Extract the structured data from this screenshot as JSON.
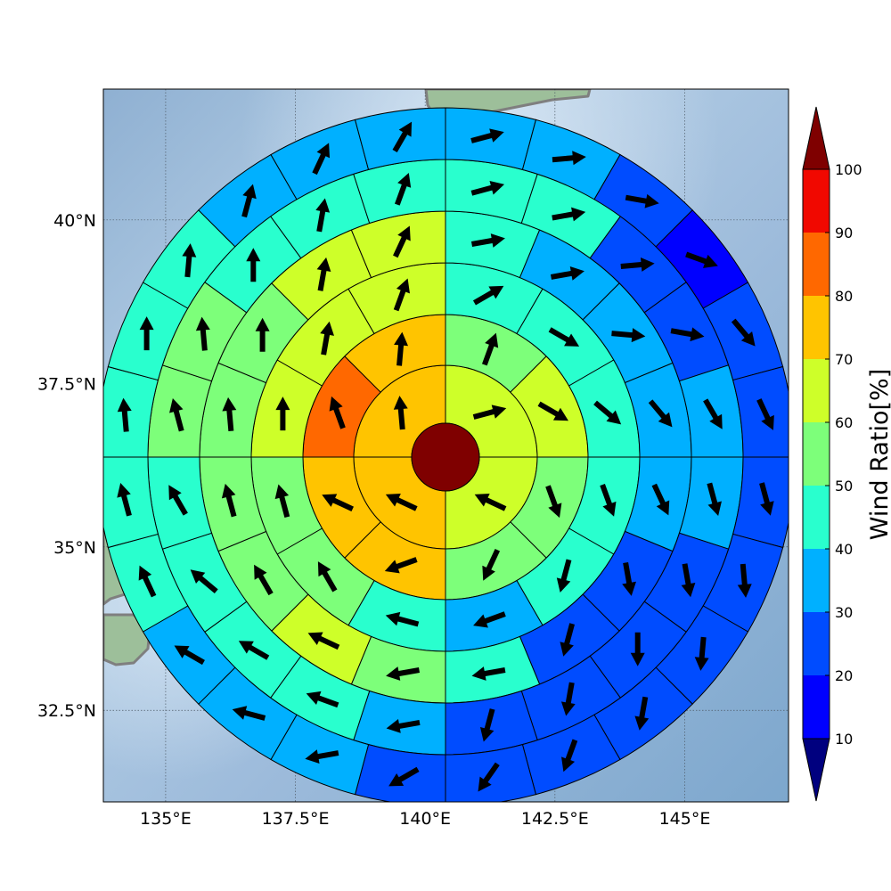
{
  "map": {
    "projection": "platecarree",
    "lon_range": [
      133.8,
      147.0
    ],
    "lat_range": [
      31.1,
      42.0
    ],
    "center": {
      "lon": 140.42,
      "lat": 36.62
    },
    "basemap": "shaded-relief",
    "coastline_color": "#7f7f7f",
    "grid": true,
    "lon_ticks": [
      {
        "value": 135.0,
        "label": "135°E"
      },
      {
        "value": 137.5,
        "label": "137.5°E"
      },
      {
        "value": 140.0,
        "label": "140°E"
      },
      {
        "value": 142.5,
        "label": "142.5°E"
      },
      {
        "value": 145.0,
        "label": "145°E"
      }
    ],
    "lat_ticks": [
      {
        "value": 32.5,
        "label": "32.5°N"
      },
      {
        "value": 35.0,
        "label": "35°N"
      },
      {
        "value": 37.5,
        "label": "37.5°N"
      },
      {
        "value": 40.0,
        "label": "40°N"
      }
    ]
  },
  "chart_data": {
    "type": "heatmap",
    "title": "",
    "value_unit": "%",
    "center_cell": {
      "value": 100
    },
    "rings": [
      {
        "sectors": 4,
        "values": [
          65,
          65,
          75,
          75
        ],
        "directions": [
          75,
          295,
          295,
          355
        ]
      },
      {
        "sectors": 8,
        "values": [
          55,
          65,
          55,
          55,
          75,
          75,
          85,
          75
        ],
        "directions": [
          20,
          120,
          160,
          205,
          250,
          295,
          340,
          5
        ]
      },
      {
        "sectors": 12,
        "values": [
          45,
          45,
          45,
          45,
          45,
          35,
          45,
          55,
          55,
          65,
          65,
          65
        ],
        "directions": [
          60,
          120,
          130,
          160,
          195,
          250,
          285,
          330,
          345,
          0,
          10,
          20
        ]
      },
      {
        "sectors": 16,
        "values": [
          45,
          35,
          35,
          35,
          35,
          25,
          25,
          45,
          55,
          65,
          55,
          55,
          55,
          55,
          65,
          65
        ],
        "directions": [
          80,
          80,
          95,
          140,
          155,
          170,
          195,
          260,
          260,
          295,
          330,
          345,
          355,
          0,
          10,
          25
        ]
      },
      {
        "sectors": 20,
        "values": [
          45,
          45,
          25,
          25,
          35,
          35,
          25,
          25,
          25,
          25,
          35,
          45,
          45,
          45,
          45,
          55,
          55,
          45,
          45,
          45
        ],
        "directions": [
          75,
          80,
          85,
          100,
          150,
          165,
          170,
          180,
          190,
          195,
          260,
          290,
          300,
          310,
          330,
          345,
          355,
          0,
          10,
          20
        ]
      },
      {
        "sectors": 24,
        "values": [
          35,
          35,
          25,
          15,
          25,
          25,
          25,
          25,
          25,
          25,
          25,
          25,
          25,
          35,
          35,
          35,
          45,
          45,
          45,
          45,
          45,
          35,
          35,
          35
        ],
        "directions": [
          75,
          85,
          100,
          110,
          140,
          155,
          165,
          175,
          185,
          190,
          200,
          215,
          240,
          260,
          285,
          300,
          335,
          345,
          355,
          0,
          5,
          15,
          25,
          30
        ]
      }
    ],
    "colorbar": {
      "title": "Wind Ratio[%]",
      "boundaries": [
        10,
        20,
        30,
        40,
        50,
        60,
        70,
        80,
        90,
        100
      ],
      "tick_labels": [
        "10",
        "20",
        "30",
        "40",
        "50",
        "60",
        "70",
        "80",
        "90",
        "100"
      ],
      "colors": [
        "#0000ff",
        "#004cff",
        "#00b0ff",
        "#29ffce",
        "#7dff7a",
        "#ceff29",
        "#ffc400",
        "#ff6800",
        "#f10800"
      ],
      "under_color": "#00007f",
      "over_color": "#7f0000",
      "extend": "both"
    }
  }
}
